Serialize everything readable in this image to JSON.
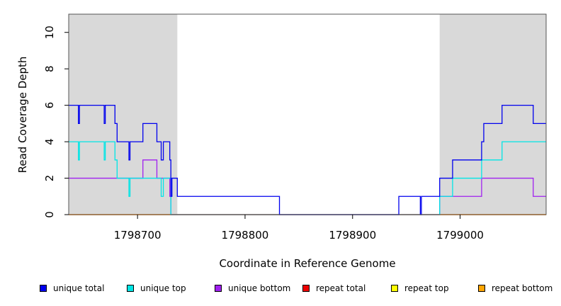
{
  "chart_data": {
    "type": "line",
    "title": "",
    "xlabel": "Coordinate in Reference Genome",
    "ylabel": "Read Coverage Depth",
    "xlim": [
      1798636,
      1799080
    ],
    "ylim": [
      0,
      11
    ],
    "x_ticks": [
      1798700,
      1798800,
      1798900,
      1799000
    ],
    "x_tick_labels": [
      "1798700",
      "1798800",
      "1798900",
      "1799000"
    ],
    "y_ticks": [
      0,
      2,
      4,
      6,
      8,
      10
    ],
    "y_tick_labels": [
      "0",
      "2",
      "4",
      "6",
      "8",
      "10"
    ],
    "shaded_regions": [
      {
        "start": 1798636,
        "end": 1798737,
        "color": "#d9d9d9"
      },
      {
        "start": 1798981,
        "end": 1799080,
        "color": "#d9d9d9"
      }
    ],
    "series": [
      {
        "name": "unique total",
        "color": "#0000ee",
        "steps": [
          [
            1798636,
            6
          ],
          [
            1798645,
            5
          ],
          [
            1798646,
            6
          ],
          [
            1798669,
            5
          ],
          [
            1798670,
            6
          ],
          [
            1798679,
            5
          ],
          [
            1798681,
            4
          ],
          [
            1798692,
            3
          ],
          [
            1798693,
            4
          ],
          [
            1798705,
            5
          ],
          [
            1798718,
            4
          ],
          [
            1798722,
            3
          ],
          [
            1798724,
            4
          ],
          [
            1798730,
            3
          ],
          [
            1798731,
            1
          ],
          [
            1798732,
            2
          ],
          [
            1798737,
            1
          ],
          [
            1798832,
            0
          ],
          [
            1798943,
            1
          ],
          [
            1798963,
            0
          ],
          [
            1798964,
            1
          ],
          [
            1798981,
            2
          ],
          [
            1798993,
            3
          ],
          [
            1799020,
            4
          ],
          [
            1799022,
            5
          ],
          [
            1799039,
            6
          ],
          [
            1799068,
            5
          ],
          [
            1799080,
            5
          ]
        ]
      },
      {
        "name": "unique top",
        "color": "#00e5e5",
        "steps": [
          [
            1798636,
            4
          ],
          [
            1798645,
            3
          ],
          [
            1798646,
            4
          ],
          [
            1798669,
            3
          ],
          [
            1798670,
            4
          ],
          [
            1798679,
            3
          ],
          [
            1798681,
            2
          ],
          [
            1798692,
            1
          ],
          [
            1798693,
            2
          ],
          [
            1798722,
            1
          ],
          [
            1798724,
            2
          ],
          [
            1798731,
            0
          ],
          [
            1798737,
            0
          ],
          [
            1798981,
            1
          ],
          [
            1798993,
            2
          ],
          [
            1799020,
            3
          ],
          [
            1799039,
            4
          ],
          [
            1799080,
            4
          ]
        ]
      },
      {
        "name": "unique bottom",
        "color": "#a020f0",
        "steps": [
          [
            1798636,
            2
          ],
          [
            1798705,
            3
          ],
          [
            1798718,
            2
          ],
          [
            1798730,
            1
          ],
          [
            1798731,
            0
          ],
          [
            1798963,
            0
          ],
          [
            1798964,
            0
          ],
          [
            1798981,
            1
          ],
          [
            1799020,
            2
          ],
          [
            1799068,
            1
          ],
          [
            1799080,
            1
          ]
        ]
      },
      {
        "name": "repeat total",
        "color": "#ee0000",
        "steps": [
          [
            1798636,
            0
          ],
          [
            1799080,
            0
          ]
        ]
      },
      {
        "name": "repeat top",
        "color": "#ffff00",
        "steps": [
          [
            1798636,
            0
          ],
          [
            1799080,
            0
          ]
        ]
      },
      {
        "name": "repeat bottom",
        "color": "#ffa500",
        "steps": [
          [
            1798636,
            0
          ],
          [
            1799080,
            0
          ]
        ]
      }
    ],
    "legend": [
      {
        "label": "unique total",
        "color": "#0000ee"
      },
      {
        "label": "unique top",
        "color": "#00e5e5"
      },
      {
        "label": "unique bottom",
        "color": "#a020f0"
      },
      {
        "label": "repeat total",
        "color": "#ee0000"
      },
      {
        "label": "repeat top",
        "color": "#ffff00"
      },
      {
        "label": "repeat bottom",
        "color": "#ffa500"
      }
    ],
    "legend_position": "bottom"
  }
}
